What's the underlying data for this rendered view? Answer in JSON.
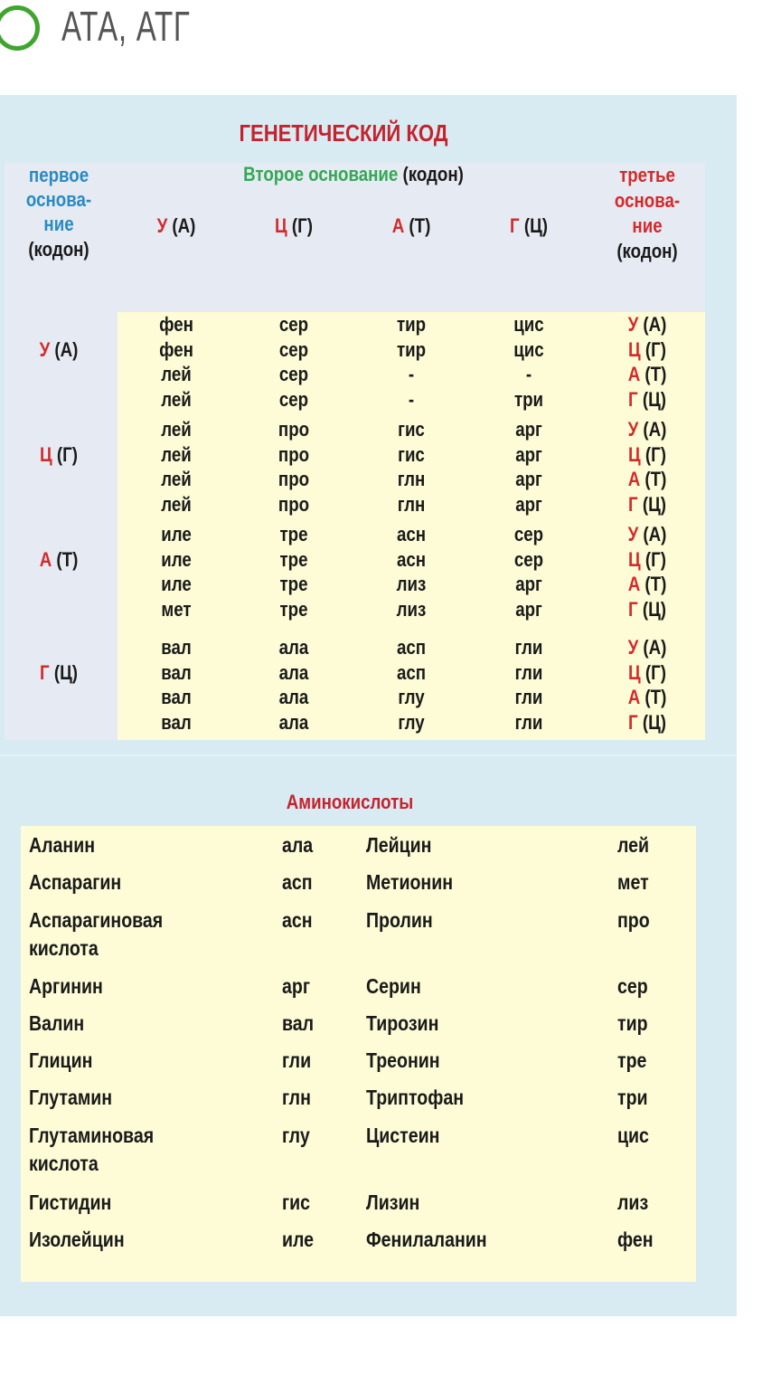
{
  "answer_option": {
    "label": "АТА, АТГ",
    "selected": false,
    "ring_color": "#3fa52f"
  },
  "codon_table": {
    "title": "ГЕНЕТИЧЕСКИЙ КОД",
    "first_header": [
      "первое",
      "основа-",
      "ние",
      "(кодон)"
    ],
    "second_header": {
      "colored": "Второе основание",
      "rest": " (кодон)"
    },
    "third_header": [
      "третье",
      "основа-",
      "ние",
      "(кодон)"
    ],
    "columns": [
      {
        "letter": "У",
        "paren": " (А)"
      },
      {
        "letter": "Ц",
        "paren": " (Г)"
      },
      {
        "letter": "А",
        "paren": " (Т)"
      },
      {
        "letter": "Г",
        "paren": " (Ц)"
      }
    ],
    "groups": [
      {
        "first": {
          "letter": "У",
          "paren": " (А)"
        },
        "rows": [
          {
            "cells": [
              "фен",
              "сер",
              "тир",
              "цис"
            ],
            "third": {
              "letter": "У",
              "paren": " (А)"
            }
          },
          {
            "cells": [
              "фен",
              "сер",
              "тир",
              "цис"
            ],
            "third": {
              "letter": "Ц",
              "paren": " (Г)"
            }
          },
          {
            "cells": [
              "лей",
              "сер",
              "-",
              "-"
            ],
            "third": {
              "letter": "А",
              "paren": " (Т)"
            }
          },
          {
            "cells": [
              "лей",
              "сер",
              "-",
              "три"
            ],
            "third": {
              "letter": "Г",
              "paren": " (Ц)"
            }
          }
        ]
      },
      {
        "first": {
          "letter": "Ц",
          "paren": " (Г)"
        },
        "rows": [
          {
            "cells": [
              "лей",
              "про",
              "гис",
              "арг"
            ],
            "third": {
              "letter": "У",
              "paren": " (А)"
            }
          },
          {
            "cells": [
              "лей",
              "про",
              "гис",
              "арг"
            ],
            "third": {
              "letter": "Ц",
              "paren": " (Г)"
            }
          },
          {
            "cells": [
              "лей",
              "про",
              "глн",
              "арг"
            ],
            "third": {
              "letter": "А",
              "paren": " (Т)"
            }
          },
          {
            "cells": [
              "лей",
              "про",
              "глн",
              "арг"
            ],
            "third": {
              "letter": "Г",
              "paren": " (Ц)"
            }
          }
        ]
      },
      {
        "first": {
          "letter": "А",
          "paren": " (Т)"
        },
        "rows": [
          {
            "cells": [
              "иле",
              "тре",
              "асн",
              "сер"
            ],
            "third": {
              "letter": "У",
              "paren": " (А)"
            }
          },
          {
            "cells": [
              "иле",
              "тре",
              "асн",
              "сер"
            ],
            "third": {
              "letter": "Ц",
              "paren": " (Г)"
            }
          },
          {
            "cells": [
              "иле",
              "тре",
              "лиз",
              "арг"
            ],
            "third": {
              "letter": "А",
              "paren": " (Т)"
            }
          },
          {
            "cells": [
              "мет",
              "тре",
              "лиз",
              "арг"
            ],
            "third": {
              "letter": "Г",
              "paren": " (Ц)"
            }
          }
        ]
      },
      {
        "first": {
          "letter": "Г",
          "paren": " (Ц)"
        },
        "rows": [
          {
            "cells": [
              "вал",
              "ала",
              "асп",
              "гли"
            ],
            "third": {
              "letter": "У",
              "paren": " (А)"
            }
          },
          {
            "cells": [
              "вал",
              "ала",
              "асп",
              "гли"
            ],
            "third": {
              "letter": "Ц",
              "paren": " (Г)"
            }
          },
          {
            "cells": [
              "вал",
              "ала",
              "глу",
              "гли"
            ],
            "third": {
              "letter": "А",
              "paren": " (Т)"
            }
          },
          {
            "cells": [
              "вал",
              "ала",
              "глу",
              "гли"
            ],
            "third": {
              "letter": "Г",
              "paren": " (Ц)"
            }
          }
        ]
      }
    ]
  },
  "amino_acids": {
    "title": "Аминокислоты",
    "rows": [
      {
        "name1": "Аланин",
        "abbr1": "ала",
        "name2": "Лейцин",
        "abbr2": "лей"
      },
      {
        "name1": "Аспарагин",
        "abbr1": "асп",
        "name2": "Метионин",
        "abbr2": "мет"
      },
      {
        "name1": "Аспарагиновая",
        "name1b": "кислота",
        "abbr1": "асн",
        "name2": "Пролин",
        "abbr2": "про"
      },
      {
        "name1": "Аргинин",
        "abbr1": "арг",
        "name2": "Серин",
        "abbr2": "сер"
      },
      {
        "name1": "Валин",
        "abbr1": "вал",
        "name2": "Тирозин",
        "abbr2": "тир"
      },
      {
        "name1": "Глицин",
        "abbr1": "гли",
        "name2": "Треонин",
        "abbr2": "тре"
      },
      {
        "name1": "Глутамин",
        "abbr1": "глн",
        "name2": "Триптофан",
        "abbr2": "три"
      },
      {
        "name1": "Глутаминовая",
        "name1b": "кислота",
        "abbr1": "глу",
        "name2": "Цистеин",
        "abbr2": "цис"
      },
      {
        "name1": "Гистидин",
        "abbr1": "гис",
        "name2": "Лизин",
        "abbr2": "лиз"
      },
      {
        "name1": "Изолейцин",
        "abbr1": "иле",
        "name2": "Фенилаланин",
        "abbr2": "фен"
      }
    ]
  },
  "colors": {
    "title_red": "#c4232e",
    "base_red": "#d42a2a",
    "first_blue": "#2a8ac2",
    "second_green": "#34a853",
    "panel_yellow": "#fdfcd6",
    "card_blue": "#d8ebf3"
  }
}
